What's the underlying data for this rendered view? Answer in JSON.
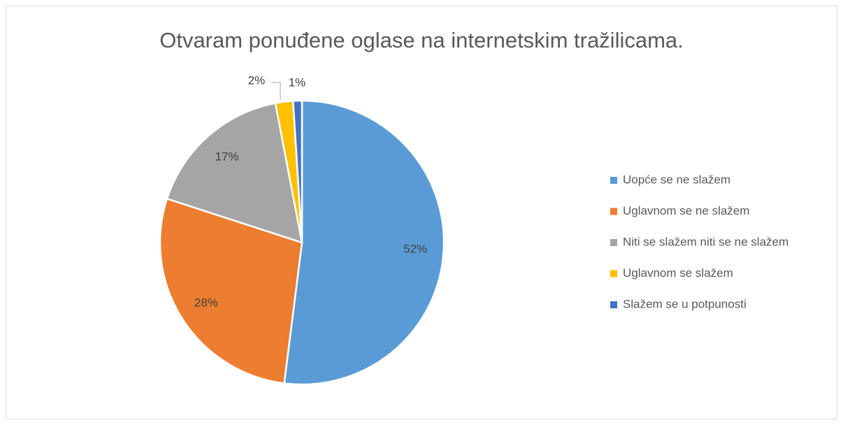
{
  "chart_data": {
    "type": "pie",
    "title": "Otvaram ponuđene oglase na internetskim tražilicama.",
    "categories": [
      "Uopće se ne slažem",
      "Uglavnom se ne slažem",
      "Niti se slažem niti se ne slažem",
      "Uglavnom se slažem",
      "Slažem se u potpunosti"
    ],
    "values": [
      52,
      28,
      17,
      2,
      1
    ],
    "value_labels": [
      "52%",
      "28%",
      "17%",
      "2%",
      "1%"
    ],
    "colors": [
      "#5b9bd5",
      "#ed7d31",
      "#a5a5a5",
      "#ffc000",
      "#4472c4"
    ],
    "legend": "right"
  }
}
